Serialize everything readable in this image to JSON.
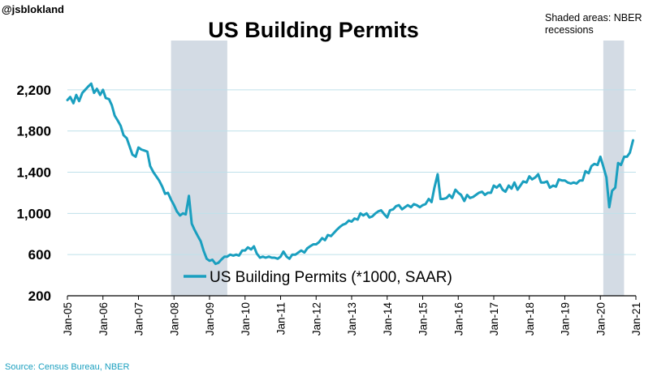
{
  "handle": "@jsblokland",
  "colors": {
    "series": "#1a9fbf",
    "recession": "#d3dbe4",
    "grid": "#bfe0ea",
    "text": "#000000",
    "footer": "#1a9fbf"
  },
  "chart_data": {
    "type": "line",
    "title": "US Building Permits",
    "note": [
      "Shaded areas: NBER",
      "recessions"
    ],
    "source": "Source: Census Bureau, NBER",
    "xlabel": "",
    "ylabel": "",
    "ylim": [
      200,
      2600
    ],
    "yticks": [
      200,
      600,
      1000,
      1400,
      1800,
      2200
    ],
    "ytick_labels": [
      "200",
      "600",
      "1,000",
      "1,400",
      "1,800",
      "2,200"
    ],
    "xlim": [
      2005.0,
      2021.0
    ],
    "xticks": [
      2005,
      2006,
      2007,
      2008,
      2009,
      2010,
      2011,
      2012,
      2013,
      2014,
      2015,
      2016,
      2017,
      2018,
      2019,
      2020,
      2021
    ],
    "xtick_labels": [
      "Jan-05",
      "Jan-06",
      "Jan-07",
      "Jan-08",
      "Jan-09",
      "Jan-10",
      "Jan-11",
      "Jan-12",
      "Jan-13",
      "Jan-14",
      "Jan-15",
      "Jan-16",
      "Jan-17",
      "Jan-18",
      "Jan-19",
      "Jan-20",
      "Jan-21"
    ],
    "grid": "horizontal",
    "legend_position": "bottom-center",
    "recessions": [
      {
        "start": 2007.917,
        "end": 2009.5
      },
      {
        "start": 2020.083,
        "end": 2020.667
      }
    ],
    "series": [
      {
        "name": "US Building Permits (*1000, SAAR)",
        "points": [
          [
            2005.0,
            2100
          ],
          [
            2005.08,
            2130
          ],
          [
            2005.17,
            2070
          ],
          [
            2005.25,
            2150
          ],
          [
            2005.33,
            2090
          ],
          [
            2005.42,
            2170
          ],
          [
            2005.5,
            2200
          ],
          [
            2005.58,
            2230
          ],
          [
            2005.67,
            2260
          ],
          [
            2005.75,
            2170
          ],
          [
            2005.83,
            2210
          ],
          [
            2005.92,
            2150
          ],
          [
            2006.0,
            2200
          ],
          [
            2006.08,
            2120
          ],
          [
            2006.17,
            2110
          ],
          [
            2006.25,
            2050
          ],
          [
            2006.33,
            1950
          ],
          [
            2006.42,
            1900
          ],
          [
            2006.5,
            1850
          ],
          [
            2006.58,
            1760
          ],
          [
            2006.67,
            1730
          ],
          [
            2006.75,
            1650
          ],
          [
            2006.83,
            1570
          ],
          [
            2006.92,
            1550
          ],
          [
            2007.0,
            1640
          ],
          [
            2007.08,
            1620
          ],
          [
            2007.17,
            1610
          ],
          [
            2007.25,
            1600
          ],
          [
            2007.33,
            1460
          ],
          [
            2007.42,
            1400
          ],
          [
            2007.5,
            1360
          ],
          [
            2007.58,
            1320
          ],
          [
            2007.67,
            1260
          ],
          [
            2007.75,
            1190
          ],
          [
            2007.83,
            1200
          ],
          [
            2007.92,
            1130
          ],
          [
            2008.0,
            1080
          ],
          [
            2008.08,
            1020
          ],
          [
            2008.17,
            980
          ],
          [
            2008.25,
            1000
          ],
          [
            2008.33,
            990
          ],
          [
            2008.42,
            1170
          ],
          [
            2008.5,
            900
          ],
          [
            2008.58,
            840
          ],
          [
            2008.67,
            780
          ],
          [
            2008.75,
            730
          ],
          [
            2008.83,
            640
          ],
          [
            2008.92,
            560
          ],
          [
            2009.0,
            540
          ],
          [
            2009.08,
            550
          ],
          [
            2009.17,
            510
          ],
          [
            2009.25,
            520
          ],
          [
            2009.33,
            550
          ],
          [
            2009.42,
            580
          ],
          [
            2009.5,
            580
          ],
          [
            2009.58,
            600
          ],
          [
            2009.67,
            590
          ],
          [
            2009.75,
            600
          ],
          [
            2009.83,
            590
          ],
          [
            2009.92,
            640
          ],
          [
            2010.0,
            640
          ],
          [
            2010.08,
            670
          ],
          [
            2010.17,
            650
          ],
          [
            2010.25,
            680
          ],
          [
            2010.33,
            610
          ],
          [
            2010.42,
            570
          ],
          [
            2010.5,
            580
          ],
          [
            2010.58,
            570
          ],
          [
            2010.67,
            580
          ],
          [
            2010.75,
            570
          ],
          [
            2010.83,
            570
          ],
          [
            2010.92,
            560
          ],
          [
            2011.0,
            580
          ],
          [
            2011.08,
            630
          ],
          [
            2011.17,
            580
          ],
          [
            2011.25,
            560
          ],
          [
            2011.33,
            600
          ],
          [
            2011.42,
            600
          ],
          [
            2011.5,
            620
          ],
          [
            2011.58,
            640
          ],
          [
            2011.67,
            620
          ],
          [
            2011.75,
            660
          ],
          [
            2011.83,
            680
          ],
          [
            2011.92,
            700
          ],
          [
            2012.0,
            700
          ],
          [
            2012.08,
            720
          ],
          [
            2012.17,
            760
          ],
          [
            2012.25,
            740
          ],
          [
            2012.33,
            790
          ],
          [
            2012.42,
            780
          ],
          [
            2012.5,
            810
          ],
          [
            2012.58,
            840
          ],
          [
            2012.67,
            870
          ],
          [
            2012.75,
            890
          ],
          [
            2012.83,
            900
          ],
          [
            2012.92,
            930
          ],
          [
            2013.0,
            920
          ],
          [
            2013.08,
            950
          ],
          [
            2013.17,
            940
          ],
          [
            2013.25,
            1000
          ],
          [
            2013.33,
            980
          ],
          [
            2013.42,
            1000
          ],
          [
            2013.5,
            960
          ],
          [
            2013.58,
            970
          ],
          [
            2013.67,
            1000
          ],
          [
            2013.75,
            1020
          ],
          [
            2013.83,
            1030
          ],
          [
            2013.92,
            990
          ],
          [
            2014.0,
            960
          ],
          [
            2014.08,
            1030
          ],
          [
            2014.17,
            1040
          ],
          [
            2014.25,
            1070
          ],
          [
            2014.33,
            1080
          ],
          [
            2014.42,
            1040
          ],
          [
            2014.5,
            1060
          ],
          [
            2014.58,
            1080
          ],
          [
            2014.67,
            1060
          ],
          [
            2014.75,
            1090
          ],
          [
            2014.83,
            1080
          ],
          [
            2014.92,
            1060
          ],
          [
            2015.0,
            1080
          ],
          [
            2015.08,
            1090
          ],
          [
            2015.17,
            1140
          ],
          [
            2015.25,
            1110
          ],
          [
            2015.33,
            1250
          ],
          [
            2015.42,
            1380
          ],
          [
            2015.5,
            1140
          ],
          [
            2015.58,
            1140
          ],
          [
            2015.67,
            1150
          ],
          [
            2015.75,
            1180
          ],
          [
            2015.83,
            1150
          ],
          [
            2015.92,
            1230
          ],
          [
            2016.0,
            1200
          ],
          [
            2016.08,
            1180
          ],
          [
            2016.17,
            1120
          ],
          [
            2016.25,
            1180
          ],
          [
            2016.33,
            1150
          ],
          [
            2016.42,
            1160
          ],
          [
            2016.5,
            1180
          ],
          [
            2016.58,
            1200
          ],
          [
            2016.67,
            1210
          ],
          [
            2016.75,
            1180
          ],
          [
            2016.83,
            1200
          ],
          [
            2016.92,
            1200
          ],
          [
            2017.0,
            1270
          ],
          [
            2017.08,
            1250
          ],
          [
            2017.17,
            1280
          ],
          [
            2017.25,
            1230
          ],
          [
            2017.33,
            1210
          ],
          [
            2017.42,
            1270
          ],
          [
            2017.5,
            1240
          ],
          [
            2017.58,
            1300
          ],
          [
            2017.67,
            1230
          ],
          [
            2017.75,
            1270
          ],
          [
            2017.83,
            1310
          ],
          [
            2017.92,
            1300
          ],
          [
            2018.0,
            1360
          ],
          [
            2018.08,
            1330
          ],
          [
            2018.17,
            1350
          ],
          [
            2018.25,
            1380
          ],
          [
            2018.33,
            1300
          ],
          [
            2018.42,
            1300
          ],
          [
            2018.5,
            1310
          ],
          [
            2018.58,
            1250
          ],
          [
            2018.67,
            1270
          ],
          [
            2018.75,
            1260
          ],
          [
            2018.83,
            1330
          ],
          [
            2018.92,
            1320
          ],
          [
            2019.0,
            1320
          ],
          [
            2019.08,
            1300
          ],
          [
            2019.17,
            1290
          ],
          [
            2019.25,
            1300
          ],
          [
            2019.33,
            1290
          ],
          [
            2019.42,
            1320
          ],
          [
            2019.5,
            1320
          ],
          [
            2019.58,
            1410
          ],
          [
            2019.67,
            1390
          ],
          [
            2019.75,
            1460
          ],
          [
            2019.83,
            1480
          ],
          [
            2019.92,
            1470
          ],
          [
            2020.0,
            1550
          ],
          [
            2020.08,
            1460
          ],
          [
            2020.17,
            1350
          ],
          [
            2020.25,
            1060
          ],
          [
            2020.33,
            1220
          ],
          [
            2020.42,
            1250
          ],
          [
            2020.5,
            1490
          ],
          [
            2020.58,
            1470
          ],
          [
            2020.67,
            1550
          ],
          [
            2020.75,
            1550
          ],
          [
            2020.83,
            1590
          ],
          [
            2020.92,
            1710
          ]
        ]
      }
    ]
  }
}
